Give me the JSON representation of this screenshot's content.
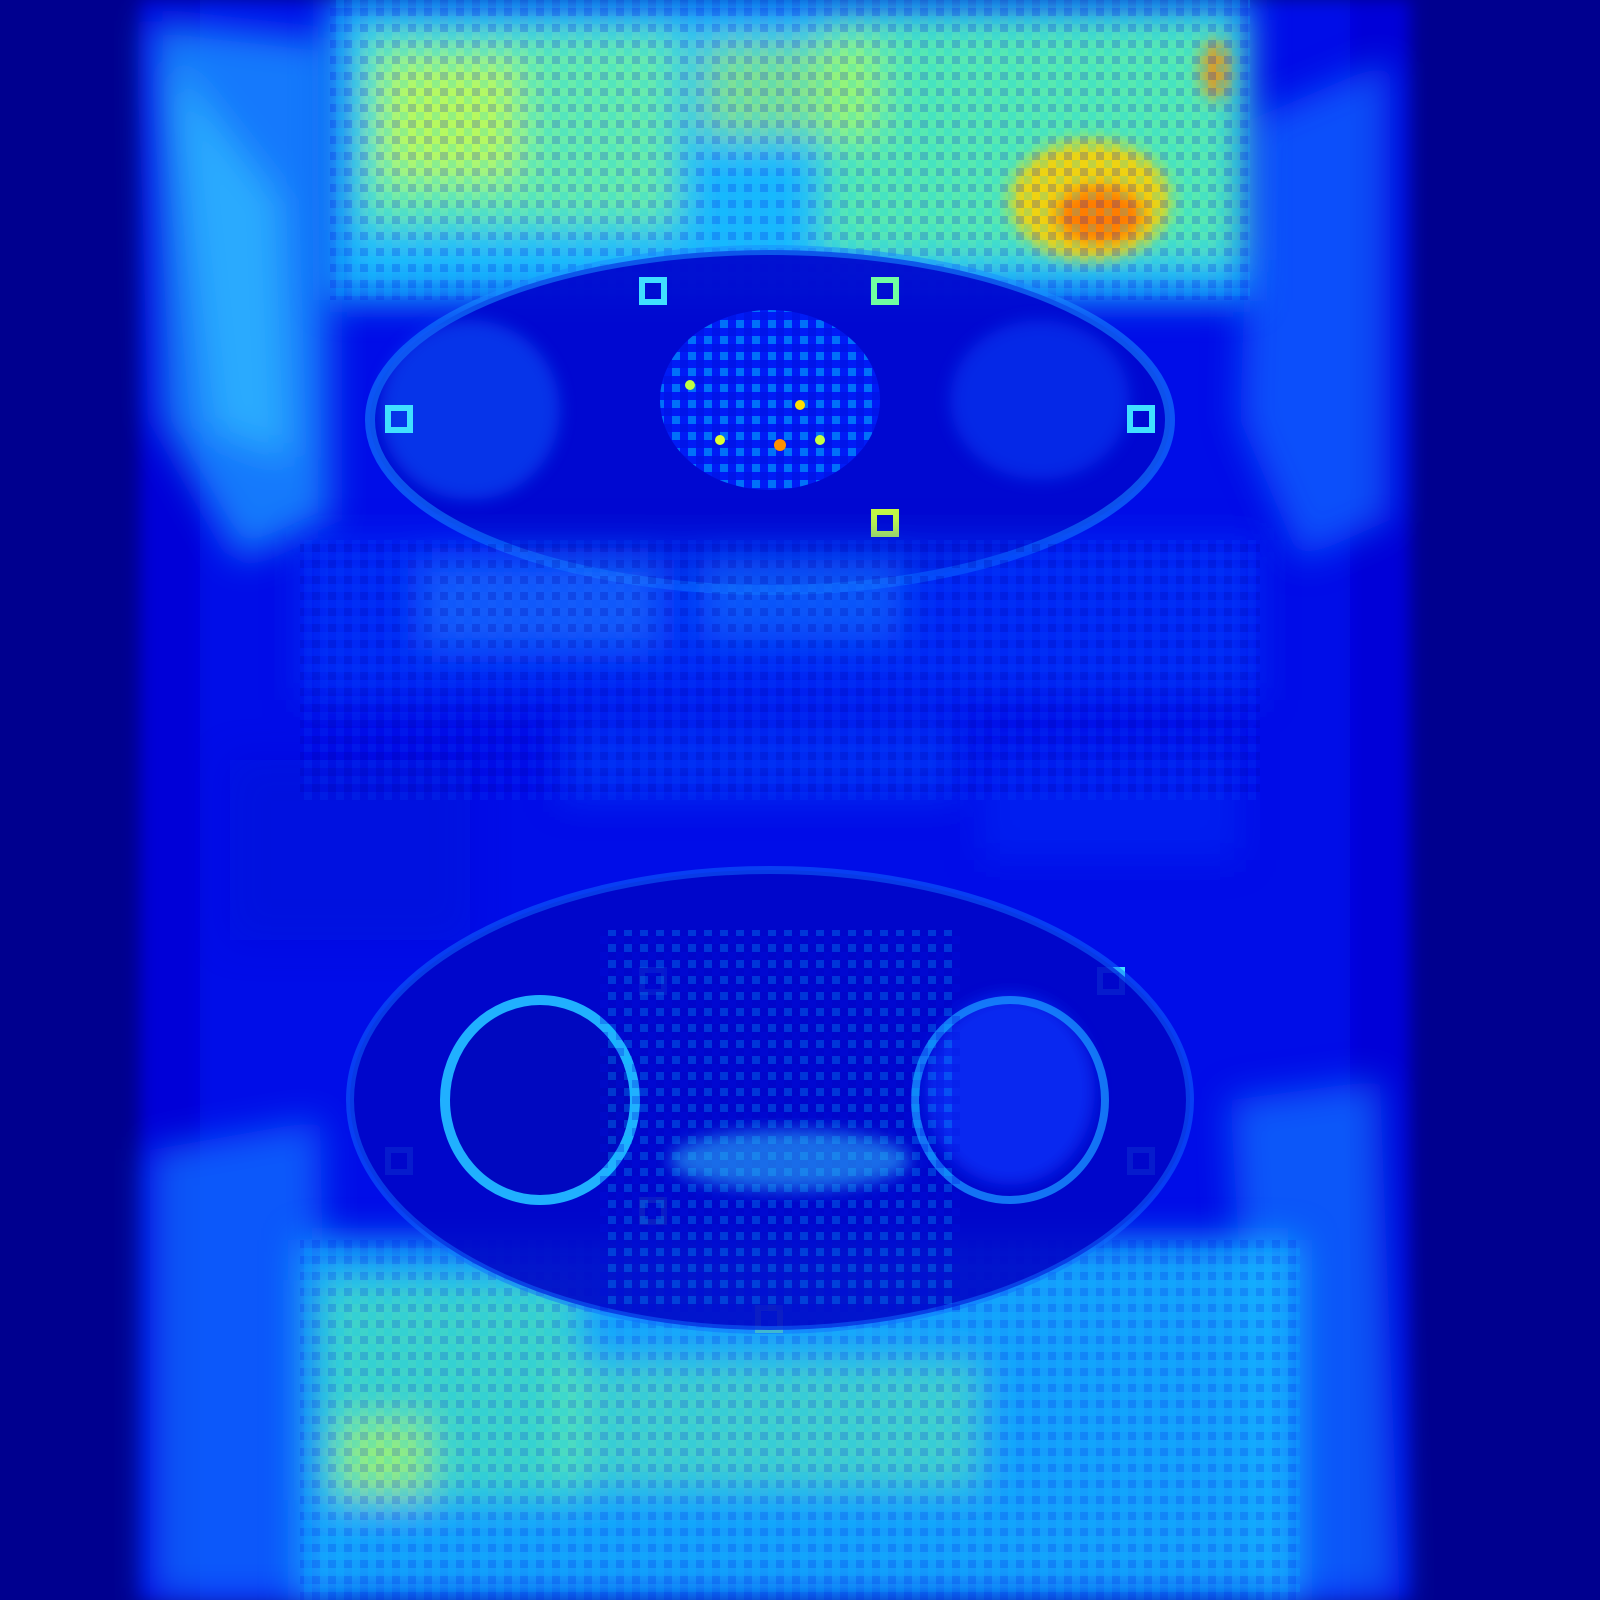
{
  "image": {
    "description_free": true,
    "colormap": "jet",
    "colormap_stops": [
      "#00008f",
      "#0000ff",
      "#0080ff",
      "#00ffff",
      "#80ff80",
      "#ffff00",
      "#ff8000",
      "#ff0000",
      "#800000"
    ]
  },
  "chart_data": {
    "type": "heatmap",
    "title": "",
    "xlabel": "",
    "ylabel": "",
    "colormap": "jet",
    "grid": false,
    "legend": "none"
  }
}
